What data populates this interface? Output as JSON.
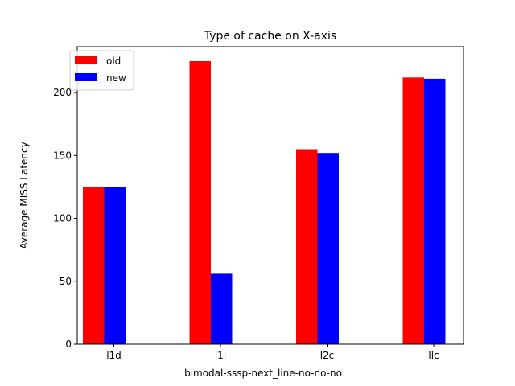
{
  "chart_data": {
    "type": "bar",
    "title": "Type of cache on X-axis",
    "xlabel": "bimodal-sssp-next_line-no-no-no",
    "ylabel": "Average MISS Latency",
    "categories": [
      "l1d",
      "l1i",
      "l2c",
      "llc"
    ],
    "series": [
      {
        "name": "old",
        "color": "#ff0000",
        "values": [
          125,
          225,
          155,
          212
        ]
      },
      {
        "name": "new",
        "color": "#0000ff",
        "values": [
          125,
          56,
          152,
          211
        ]
      }
    ],
    "ylim": [
      0,
      236.5
    ],
    "yticks": [
      0,
      50,
      100,
      150,
      200
    ],
    "grid": false,
    "legend": "top-left"
  }
}
